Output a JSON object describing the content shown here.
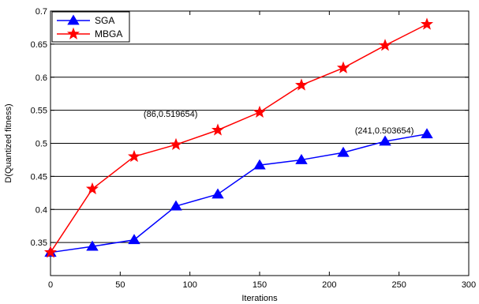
{
  "chart_data": {
    "type": "line",
    "title": "",
    "xlabel": "Iterations",
    "ylabel": "D(Quantized fitness)",
    "xlim": [
      0,
      300
    ],
    "ylim": [
      0.3,
      0.7
    ],
    "xticks": [
      0,
      50,
      100,
      150,
      200,
      250,
      300
    ],
    "yticks": [
      0.35,
      0.4,
      0.45,
      0.5,
      0.55,
      0.6,
      0.65,
      0.7
    ],
    "ytick_labels": [
      "0.35",
      "0.4",
      "0.45",
      "0.5",
      "0.55",
      "0.6",
      "0.65",
      "0.7"
    ],
    "grid": "horizontal",
    "legend_position": "top-left",
    "series": [
      {
        "name": "SGA",
        "color": "#0000ff",
        "marker": "triangle",
        "x": [
          0,
          30,
          60,
          90,
          120,
          150,
          180,
          210,
          240,
          270
        ],
        "y": [
          0.335,
          0.344,
          0.354,
          0.405,
          0.423,
          0.467,
          0.475,
          0.486,
          0.503,
          0.514
        ]
      },
      {
        "name": "MBGA",
        "color": "#ff0000",
        "marker": "star",
        "x": [
          0,
          30,
          60,
          90,
          120,
          150,
          180,
          210,
          240,
          270
        ],
        "y": [
          0.335,
          0.431,
          0.48,
          0.498,
          0.52,
          0.547,
          0.588,
          0.614,
          0.648,
          0.68
        ]
      }
    ],
    "annotations": [
      {
        "text": "(86,0.519654)",
        "x": 86,
        "y": 0.519654
      },
      {
        "text": "(241,0.503654)",
        "x": 241,
        "y": 0.503654
      }
    ]
  }
}
